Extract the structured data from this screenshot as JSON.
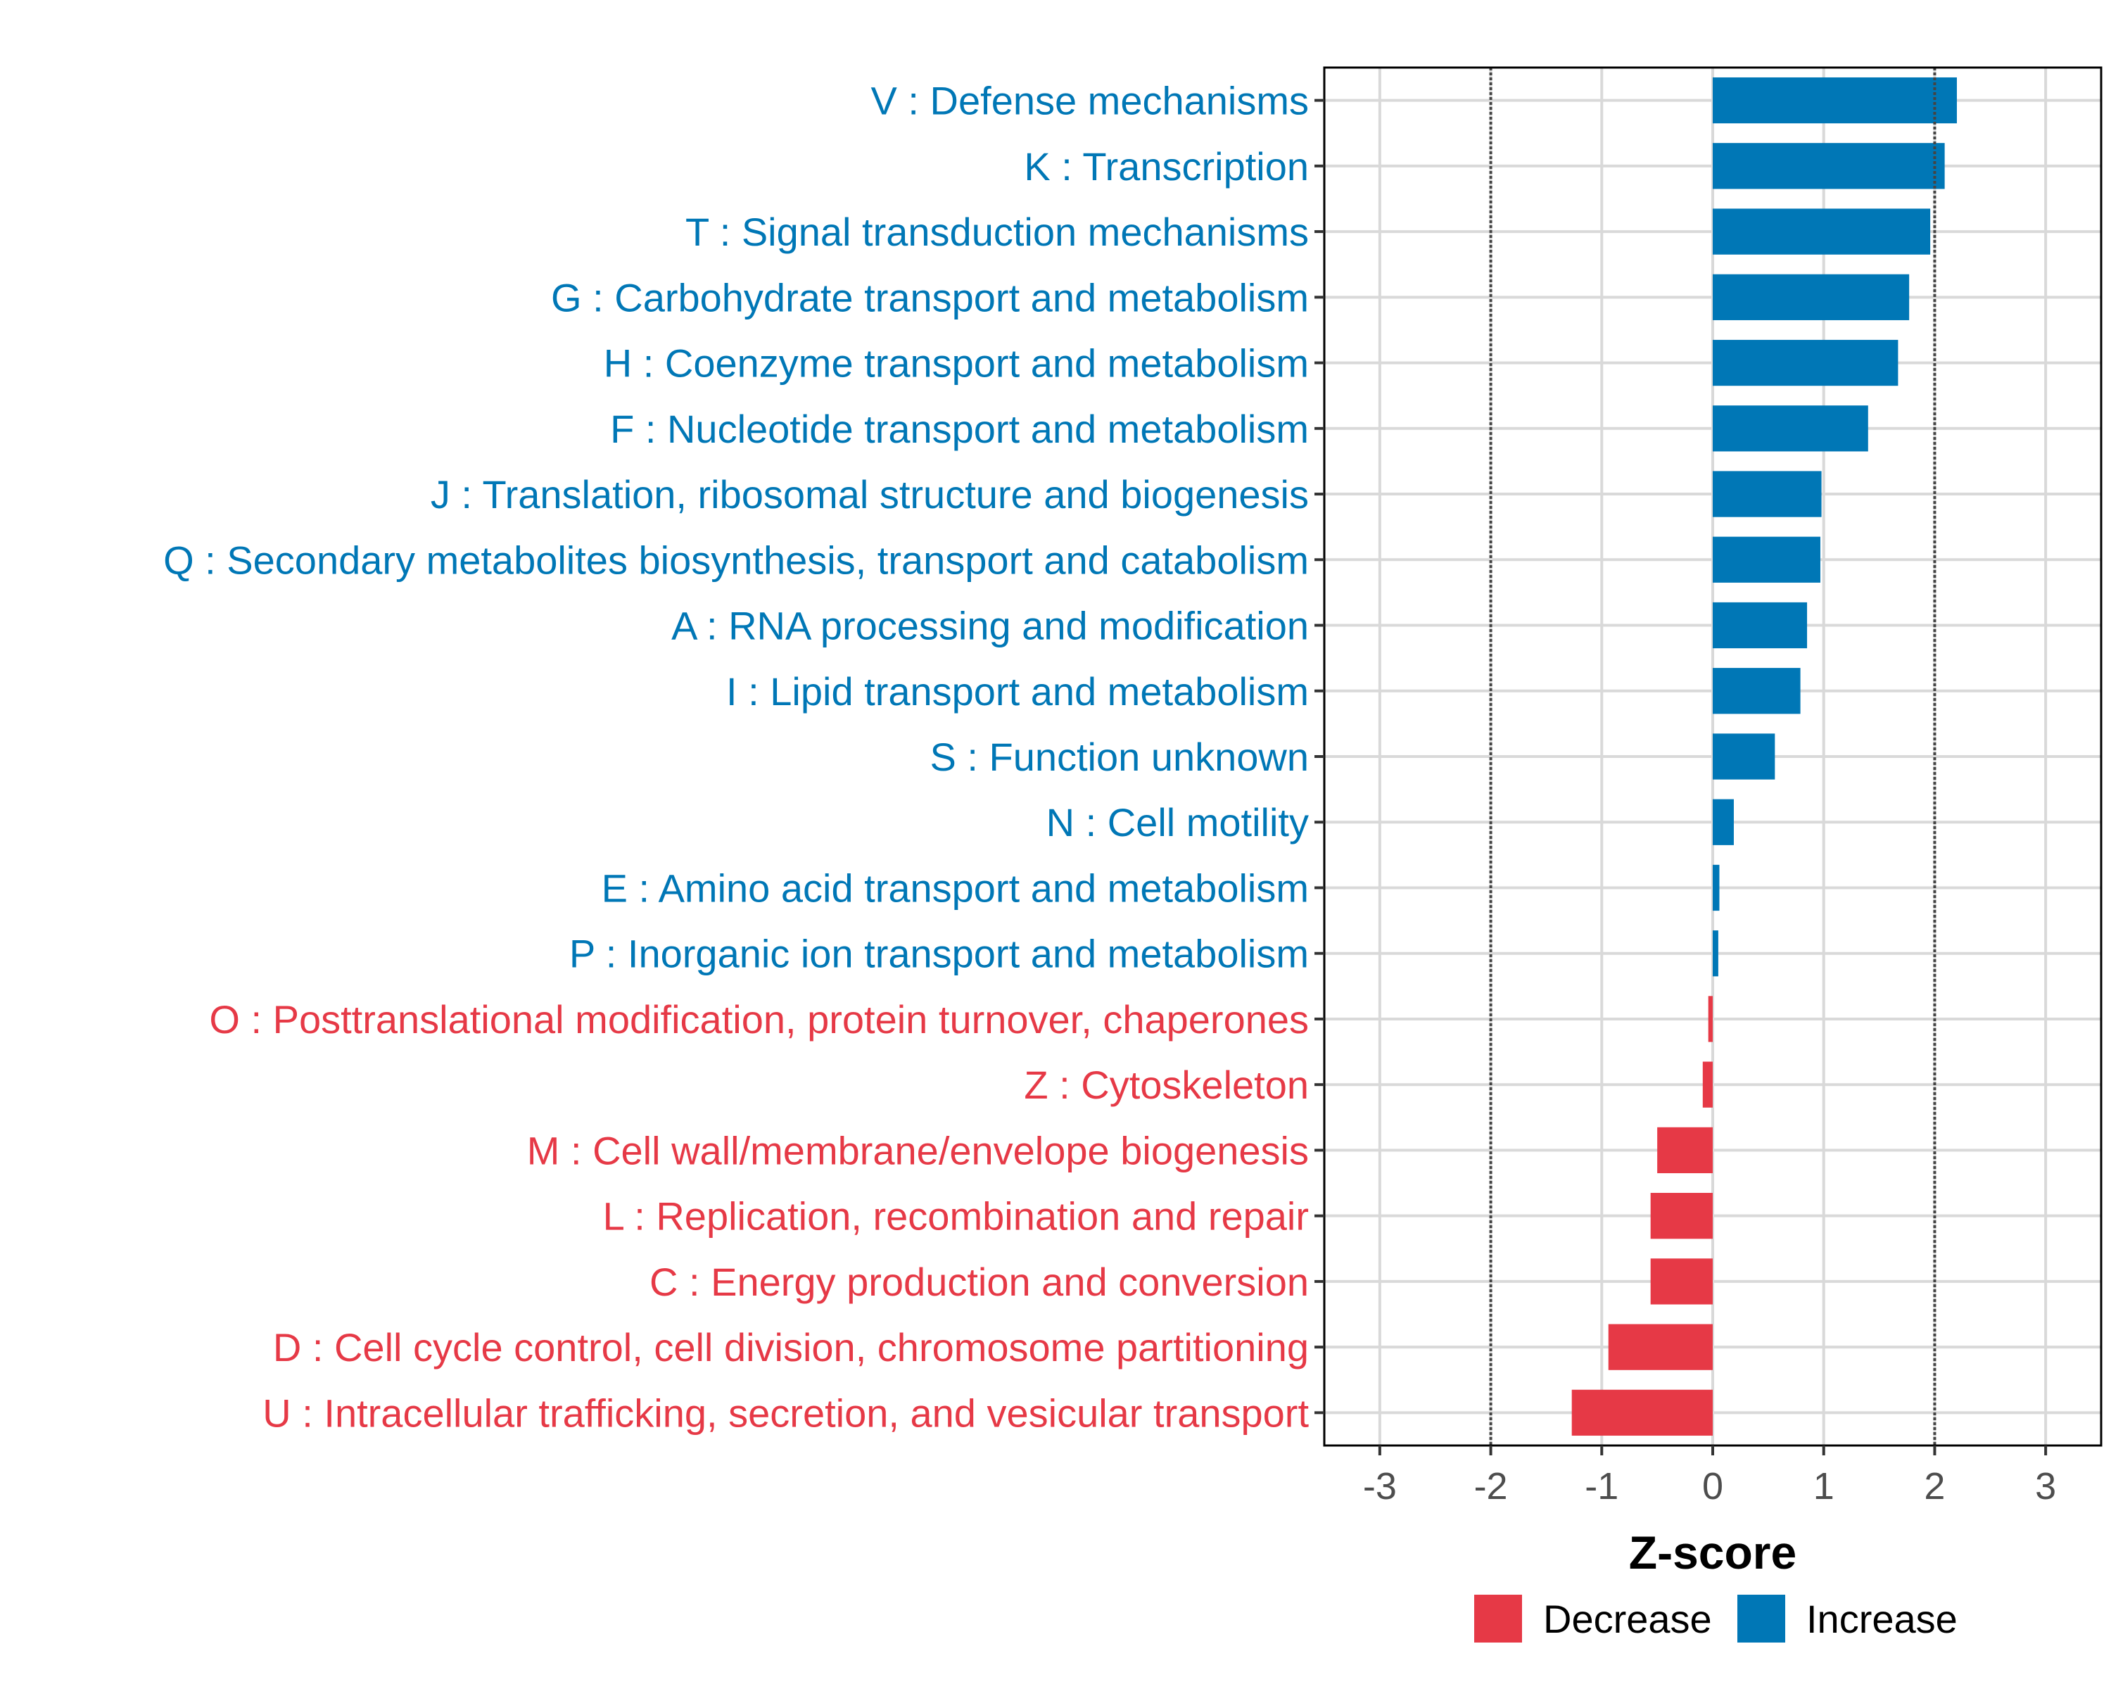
{
  "chart_data": {
    "type": "bar",
    "orientation": "horizontal",
    "title": "",
    "xlabel": "Z-score",
    "ylabel": "",
    "xlim": [
      -3.5,
      3.5
    ],
    "xticks": [
      -3,
      -2,
      -1,
      0,
      1,
      2,
      3
    ],
    "xtick_labels": [
      "-3",
      "-2",
      "-1",
      "0",
      "1",
      "2",
      "3"
    ],
    "reference_lines": [
      -2,
      2
    ],
    "grid": true,
    "legend_position": "bottom",
    "colors": {
      "Decrease": "#E63946",
      "Increase": "#0077B6"
    },
    "legend": [
      {
        "label": "Decrease",
        "color": "#E63946"
      },
      {
        "label": "Increase",
        "color": "#0077B6"
      }
    ],
    "categories": [
      "V : Defense mechanisms",
      "K : Transcription",
      "T : Signal transduction mechanisms",
      "G : Carbohydrate transport and metabolism",
      "H : Coenzyme transport and metabolism",
      "F : Nucleotide transport and metabolism",
      "J : Translation, ribosomal structure and biogenesis",
      "Q : Secondary metabolites biosynthesis, transport and catabolism",
      "A : RNA processing and modification",
      "I : Lipid transport and metabolism",
      "S : Function unknown",
      "N : Cell motility",
      "E : Amino acid transport and metabolism",
      "P : Inorganic ion transport and metabolism",
      "O : Posttranslational modification, protein turnover, chaperones",
      "Z : Cytoskeleton",
      "M : Cell wall/membrane/envelope biogenesis",
      "L : Replication, recombination and repair",
      "C : Energy production and conversion",
      "D : Cell cycle control, cell division, chromosome partitioning",
      "U : Intracellular trafficking, secretion, and vesicular transport"
    ],
    "values": [
      2.2,
      2.09,
      1.96,
      1.77,
      1.67,
      1.4,
      0.98,
      0.97,
      0.85,
      0.79,
      0.56,
      0.19,
      0.06,
      0.05,
      -0.04,
      -0.09,
      -0.5,
      -0.56,
      -0.56,
      -0.94,
      -1.27
    ],
    "groups": [
      "Increase",
      "Increase",
      "Increase",
      "Increase",
      "Increase",
      "Increase",
      "Increase",
      "Increase",
      "Increase",
      "Increase",
      "Increase",
      "Increase",
      "Increase",
      "Increase",
      "Decrease",
      "Decrease",
      "Decrease",
      "Decrease",
      "Decrease",
      "Decrease",
      "Decrease"
    ]
  }
}
